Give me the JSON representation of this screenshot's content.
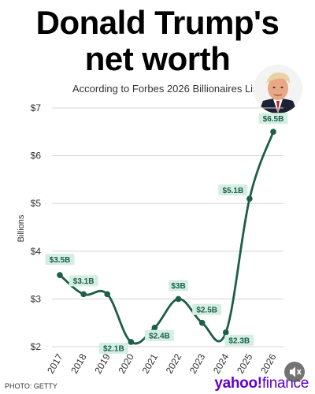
{
  "header": {
    "title_line1": "Donald Trump's",
    "title_line2": "net worth",
    "subtitle": "According to Forbes 2026 Billionaires List"
  },
  "footer": {
    "photo_credit": "PHOTO: GETTY",
    "brand_yahoo": "yahoo!",
    "brand_finance": "finance"
  },
  "colors": {
    "line": "#1c5e48",
    "label_bg": "#d3eee2",
    "label_text": "#1c5e48",
    "grid": "#d4d4d4",
    "brand": "#6001d2"
  },
  "icons": [
    "trump-portrait-photo",
    "mute-icon"
  ],
  "chart_data": {
    "type": "line",
    "title": "Donald Trump's net worth",
    "subtitle": "According to Forbes 2026 Billionaires List",
    "xlabel": "",
    "ylabel": "Billions",
    "ylim": [
      2,
      7
    ],
    "yticks": [
      2,
      3,
      4,
      5,
      6,
      7
    ],
    "ytick_labels": [
      "$2",
      "$3",
      "$4",
      "$5",
      "$6",
      "$7"
    ],
    "grid": true,
    "smooth": true,
    "x": [
      2017,
      2018,
      2019,
      2020,
      2021,
      2022,
      2023,
      2024,
      2025,
      2026
    ],
    "xtick_labels": [
      "2017",
      "2018",
      "2019",
      "2020",
      "2021",
      "2022",
      "2023",
      "2024",
      "2025",
      "2026"
    ],
    "values": [
      3.5,
      3.1,
      3.1,
      2.1,
      2.4,
      3.0,
      2.5,
      2.3,
      5.1,
      6.5
    ],
    "data_labels": [
      "$3.5B",
      "$3.1B",
      "",
      "$2.1B",
      "$2.4B",
      "$3B",
      "$2.5B",
      "$2.3B",
      "$5.1B",
      "$6.5B"
    ]
  }
}
